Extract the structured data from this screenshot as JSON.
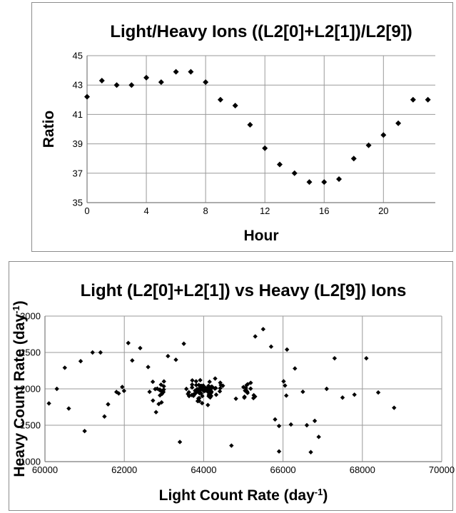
{
  "chart_data": [
    {
      "type": "scatter",
      "title": "Light/Heavy Ions ((L2[0]+L2[1])/L2[9])",
      "xlabel": "Hour",
      "ylabel": "Ratio",
      "xlim": [
        0,
        23.5
      ],
      "ylim": [
        35,
        45
      ],
      "xticks": [
        0,
        4,
        8,
        12,
        16,
        20
      ],
      "yticks": [
        35,
        37,
        39,
        41,
        43,
        45
      ],
      "grid": true,
      "series": [
        {
          "x": [
            0,
            1,
            2,
            3,
            4,
            5,
            6,
            7,
            8,
            9,
            10,
            11,
            12,
            13,
            14,
            15,
            16,
            17,
            18,
            19,
            20,
            21,
            22,
            23
          ],
          "y": [
            42.2,
            43.3,
            43.0,
            43.0,
            43.5,
            43.2,
            43.9,
            43.9,
            43.2,
            42.0,
            41.6,
            40.3,
            38.7,
            37.6,
            37.0,
            36.4,
            36.4,
            36.6,
            38.0,
            38.9,
            39.6,
            40.4,
            42.0,
            42.0
          ]
        }
      ]
    },
    {
      "type": "scatter",
      "title": "Light (L2[0]+L2[1]) vs Heavy (L2[9]) Ions",
      "xlabel": "Light Count Rate (day",
      "xlabel_sup": "-1",
      "xlabel_end": ")",
      "ylabel": "Heavy Count Rate (day",
      "ylabel_sup": "-1",
      "ylabel_end": ")",
      "xlim": [
        60000,
        70000
      ],
      "ylim": [
        1000,
        3000
      ],
      "xticks": [
        60000,
        62000,
        64000,
        66000,
        68000,
        70000
      ],
      "yticks": [
        1000,
        1500,
        2000,
        2500,
        3000
      ],
      "grid": true,
      "series": [
        {
          "x": [
            64813,
            63812,
            61948,
            64418,
            63627,
            62722,
            64434,
            65095,
            63868,
            61591,
            65003,
            63823,
            64407,
            64484,
            64189,
            63604,
            63874,
            63850,
            63713,
            65029,
            62952,
            65294,
            64149,
            61993,
            63961,
            62637,
            66083,
            63744,
            65186,
            62939,
            61859,
            63889,
            62718,
            63897,
            65263,
            63928,
            63913,
            64022,
            63709,
            64290,
            63888,
            63632,
            63747,
            65109,
            64127,
            64281,
            62830,
            64189,
            62868,
            63990,
            64106,
            62995,
            61802,
            65025,
            62919,
            63810,
            63700,
            64165,
            62994,
            64133,
            62900,
            65106,
            64316,
            64197,
            65184,
            62985,
            63893,
            64418,
            66015,
            64215,
            62778,
            63787,
            63895,
            63564,
            63889,
            65255,
            65063,
            62967,
            65083,
            64125,
            64304,
            63910,
            63708,
            62899,
            63895,
            62999,
            64171,
            63898,
            62883,
            63895,
            64057,
            63965,
            66050,
            65044,
            64101,
            63975,
            62925,
            64123,
            63935,
            63921,
            64048,
            63868,
            64111,
            63924,
            64113,
            64173,
            64023,
            65064,
            63977,
            63878,
            64096,
            63919,
            63784,
            64196,
            63822,
            64010,
            63952,
            64186,
            64007,
            64052,
            64033,
            64132,
            63834,
            63981,
            64025,
            63987,
            64043,
            63980,
            64008,
            64020,
            63876,
            63970,
            64002,
            64145,
            63982,
            64046,
            63891,
            64094,
            64060,
            64106,
            63916,
            64021,
            63940,
            64038,
            64147,
            63880,
            63957,
            64008,
            64019,
            63999,
            63974,
            64041,
            64046,
            64008,
            64012,
            63986,
            63988,
            64056,
            64001,
            63997,
            64004,
            64013,
            63992,
            63996,
            64010,
            64007,
            64003,
            64002,
            62100,
            61200,
            60900,
            60500,
            60300,
            60100,
            61000,
            61500,
            62400,
            62600,
            62800,
            63100,
            63300,
            63500,
            65300,
            65500,
            65700,
            65900,
            66100,
            66300,
            66500,
            66700,
            66900,
            67100,
            67300,
            67500,
            67800,
            68100,
            68400,
            68800,
            66200,
            66600,
            66800,
            65800,
            60600,
            61400,
            62200,
            63400,
            64700,
            65900
          ],
          "y": [
            1865,
            2052,
            2026,
            2009,
            1954,
            1839,
            2051,
            1963,
            1869,
            1788,
            2024,
            1962,
            1966,
            2043,
            1903,
            1930,
            1995,
            1832,
            2116,
            1892,
            1932,
            1894,
            2097,
            1972,
            1803,
            1959,
            1907,
            1905,
            2083,
            1814,
            1937,
            1997,
            2097,
            1948,
            1912,
            2031,
            2119,
            2012,
            2058,
            2142,
            1833,
            1902,
            1925,
            2063,
            1899,
            2004,
            2003,
            1945,
            1792,
            2045,
            1778,
            2035,
            1957,
            1879,
            1972,
            2104,
            1915,
            1882,
            1990,
            1919,
            1988,
            1944,
            1919,
            1962,
            2003,
            1957,
            1941,
            2084,
            2103,
            2027,
            1997,
            1934,
            2008,
            1999,
            1872,
            1873,
            1986,
            1960,
            2051,
            1955,
            2010,
            1945,
            2020,
            1911,
            1961,
            2102,
            2011,
            1989,
            1986,
            1974,
            2006,
            1901,
            2045,
            1975,
            1961,
            1986,
            2057,
            2041,
            1938,
            1997,
            1996,
            1961,
            2017,
            2041,
            1984,
            1982,
            1994,
            2013,
            1995,
            2053,
            2009,
            1999,
            1974,
            2030,
            1977,
            1998,
            2040,
            2004,
            2007,
            2011,
            1974,
            2000,
            1996,
            2021,
            1980,
            2017,
            1995,
            2002,
            1969,
            1987,
            1979,
            2003,
            1996,
            2008,
            2010,
            1982,
            1996,
            2002,
            2003,
            1999,
            2005,
            1999,
            2006,
            2001,
            1995,
            1996,
            2007,
            1998,
            2006,
            1997,
            2005,
            2000,
            2001,
            1999,
            1996,
            2001,
            2002,
            1997,
            1998,
            1999,
            2000,
            2001,
            1999,
            2000,
            2000,
            2001,
            2000,
            2000,
            2630,
            2500,
            2380,
            2290,
            2000,
            1800,
            1420,
            1620,
            2560,
            2300,
            1680,
            2450,
            2400,
            2620,
            2720,
            2820,
            2580,
            1140,
            2540,
            2280,
            1960,
            1130,
            1340,
            2000,
            2420,
            1880,
            1920,
            2420,
            1950,
            1740,
            1510,
            1500,
            1560,
            1580,
            1730,
            2500,
            2390,
            1270,
            1220,
            1490
          ],
          "seed_note": ""
        }
      ]
    }
  ]
}
